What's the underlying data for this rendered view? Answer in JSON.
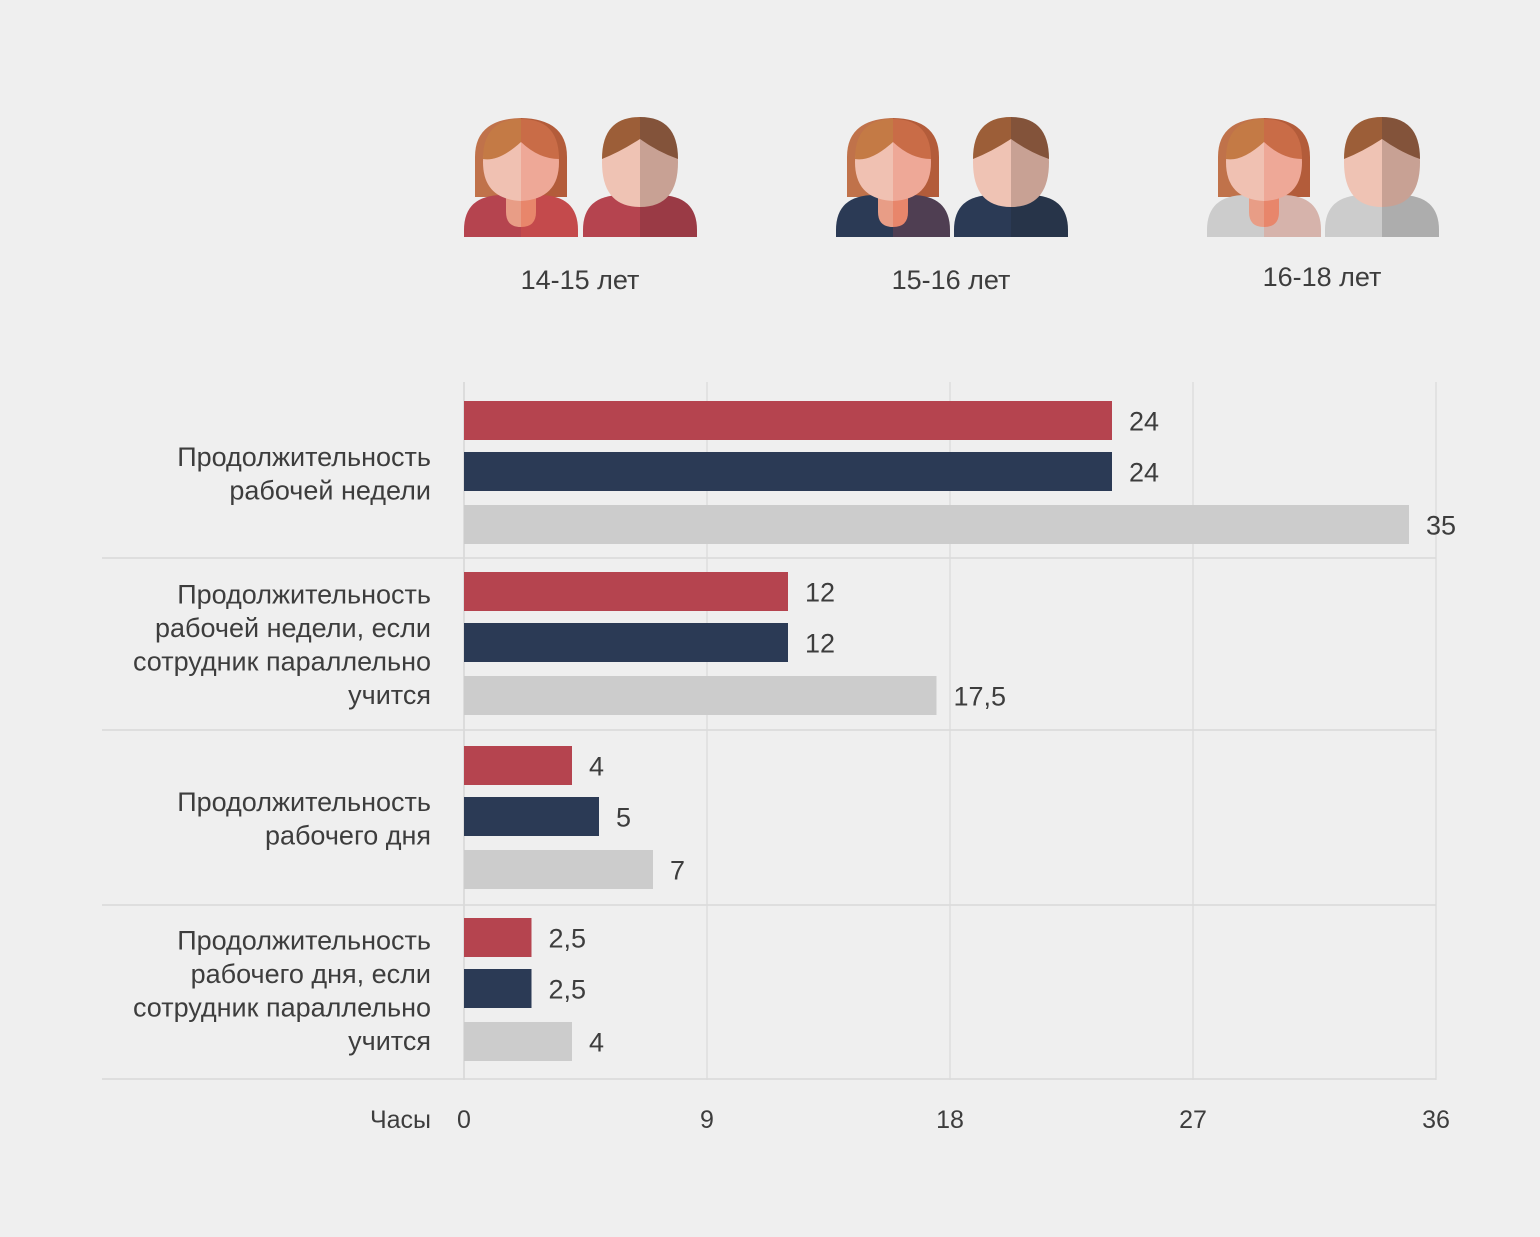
{
  "chart_data": {
    "type": "bar",
    "orientation": "horizontal",
    "categories": [
      [
        "Продолжительность",
        "рабочей недели"
      ],
      [
        "Продолжительность",
        "рабочей недели, если",
        "сотрудник параллельно",
        "учится"
      ],
      [
        "Продолжительность",
        "рабочего дня"
      ],
      [
        "Продолжительность",
        "рабочего дня, если",
        "сотрудник параллельно",
        "учится"
      ]
    ],
    "series": [
      {
        "name": "14-15 лет",
        "color": "#b5444f",
        "dark_color": "#9a3a45",
        "values": [
          24,
          12,
          4,
          2.5
        ],
        "labels": [
          "24",
          "12",
          "4",
          "2,5"
        ]
      },
      {
        "name": "15-16 лет",
        "color": "#2b3a55",
        "dark_color": "#273449",
        "values": [
          24,
          12,
          5,
          2.5
        ],
        "labels": [
          "24",
          "12",
          "5",
          "2,5"
        ]
      },
      {
        "name": "16-18 лет",
        "color": "#cccccc",
        "dark_color": "#adadad",
        "values": [
          35,
          17.5,
          7,
          4
        ],
        "labels": [
          "35",
          "17,5",
          "7",
          "4"
        ]
      }
    ],
    "xlabel": "Часы",
    "xlim": [
      0,
      36
    ],
    "xticks": [
      0,
      9,
      18,
      27,
      36
    ],
    "xtick_labels": [
      "0",
      "9",
      "18",
      "27",
      "36"
    ],
    "grid": true,
    "legend": "top (person icons)"
  }
}
